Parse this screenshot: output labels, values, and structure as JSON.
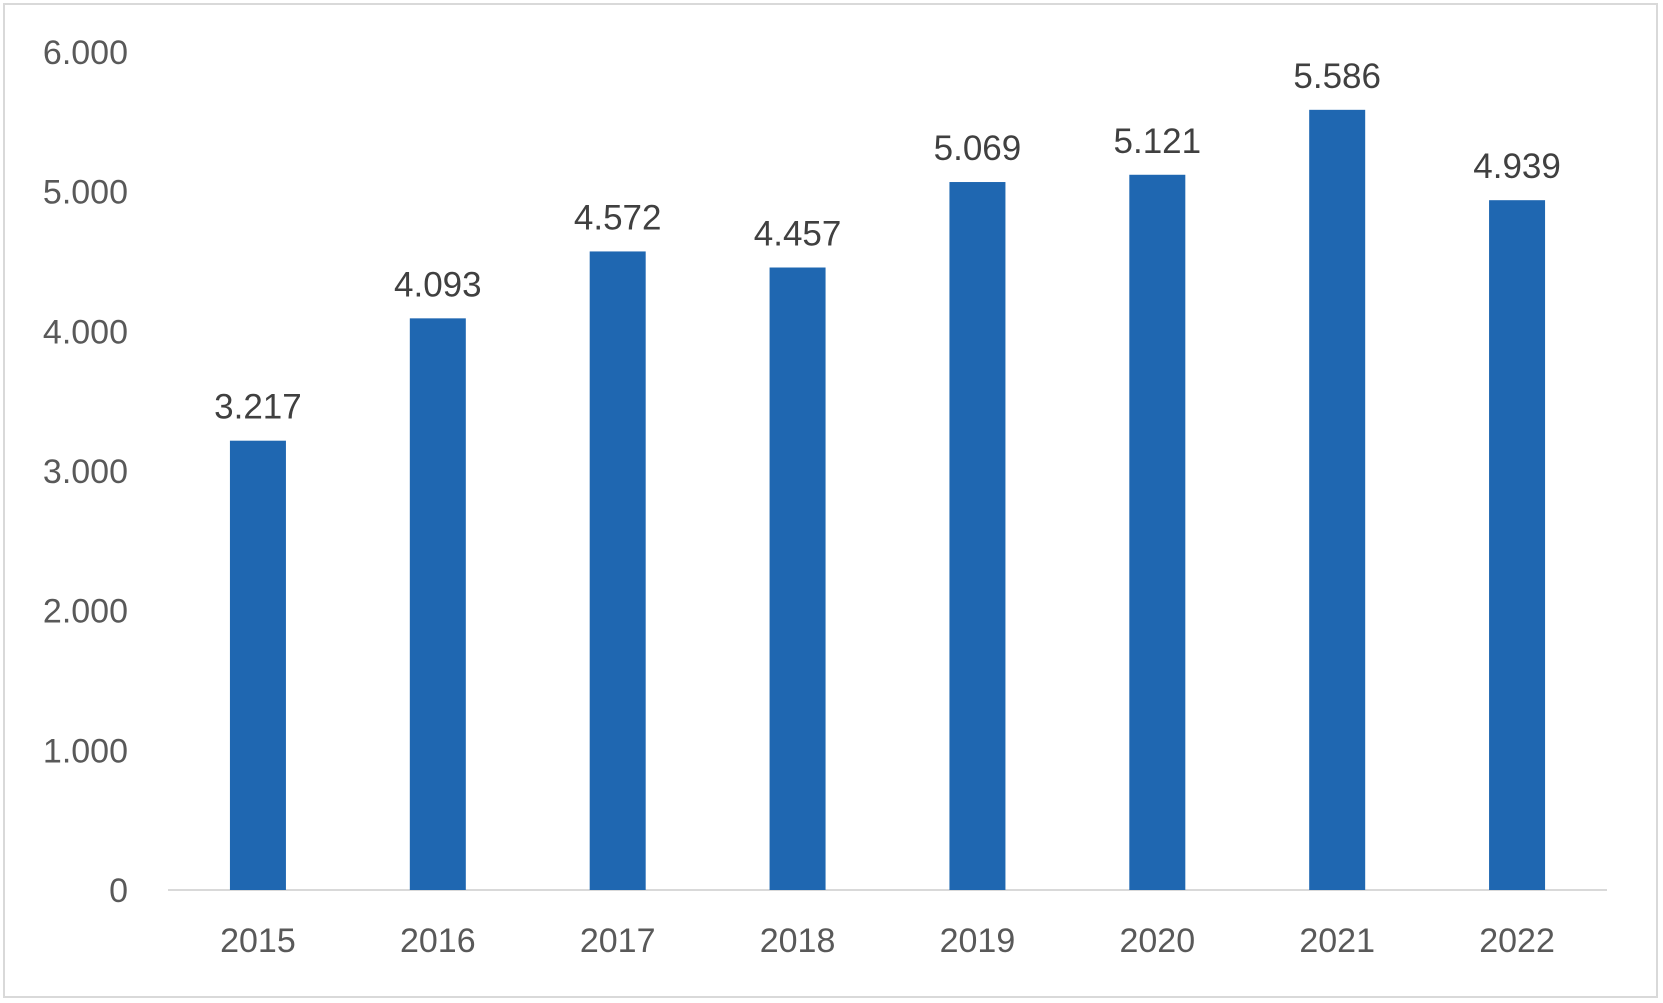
{
  "chart_data": {
    "type": "bar",
    "categories": [
      "2015",
      "2016",
      "2017",
      "2018",
      "2019",
      "2020",
      "2021",
      "2022"
    ],
    "series": [
      {
        "values": [
          3217,
          4093,
          4572,
          4457,
          5069,
          5121,
          5586,
          4939
        ],
        "labels": [
          "3.217",
          "4.093",
          "4.572",
          "4.457",
          "5.069",
          "5.121",
          "5.586",
          "4.939"
        ]
      }
    ],
    "y_ticks": [
      0,
      1000,
      2000,
      3000,
      4000,
      5000,
      6000
    ],
    "y_tick_labels": [
      "0",
      "1.000",
      "2.000",
      "3.000",
      "4.000",
      "5.000",
      "6.000"
    ],
    "ylim": [
      0,
      6000
    ],
    "grid": false,
    "legend": "none",
    "colors": {
      "bar": "#1f67b1",
      "axis": "#d9d9d9",
      "frame": "#d9d9d9"
    }
  }
}
